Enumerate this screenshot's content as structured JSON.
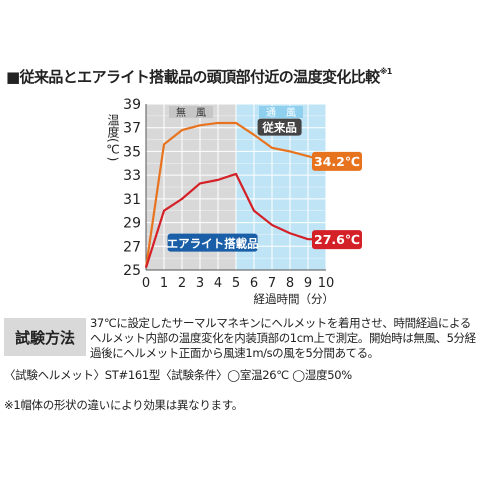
{
  "title": "■従来品とエアライト搭載品の頭頂部付近の温度変化比較",
  "title_sup": "※1",
  "chart_data": {
    "type": "line",
    "ylabel": "温度(℃)",
    "xlabel": "経過時間（分）",
    "x": [
      0,
      1,
      2,
      3,
      4,
      5,
      6,
      7,
      8,
      9,
      10
    ],
    "ylim": [
      25,
      39
    ],
    "xlim": [
      0,
      10
    ],
    "y_ticks": [
      "25",
      "27",
      "29",
      "31",
      "33",
      "35",
      "37",
      "39"
    ],
    "x_ticks": [
      "0",
      "1",
      "2",
      "3",
      "4",
      "5",
      "6",
      "7",
      "8",
      "9",
      "10"
    ],
    "grid": true,
    "regions": [
      {
        "label": "無　風",
        "from": 0,
        "to": 5,
        "color": "#d8d8d8"
      },
      {
        "label": "通　風",
        "from": 5,
        "to": 10,
        "color": "#bfe4f6"
      }
    ],
    "series": [
      {
        "name": "従来品",
        "color": "#e8731f",
        "values": [
          25.2,
          35.6,
          36.8,
          37.2,
          37.4,
          37.4,
          36.4,
          35.3,
          35.0,
          34.6,
          34.2
        ],
        "end_label": "34.2℃"
      },
      {
        "name": "エアライト搭載品",
        "color": "#d42027",
        "values": [
          25.2,
          30.0,
          31.0,
          32.3,
          32.6,
          33.1,
          30.0,
          28.8,
          28.1,
          27.6,
          27.6
        ],
        "end_label": "27.6℃"
      }
    ]
  },
  "test": {
    "label": "試験方法",
    "desc": "37℃に設定したサーマルマネキンにヘルメットを着用させ、時間経過によるヘルメット内部の温度変化を内装頂部の1cm上で測定。開始時は無風、5分経過後にヘルメット正面から風速1m/sの風を5分間あてる。"
  },
  "conditions": "〈試験ヘルメット〉ST#161型〈試験条件〉◯室温26℃ ◯湿度50%",
  "note": "※1帽体の形状の違いにより効果は異なります。"
}
